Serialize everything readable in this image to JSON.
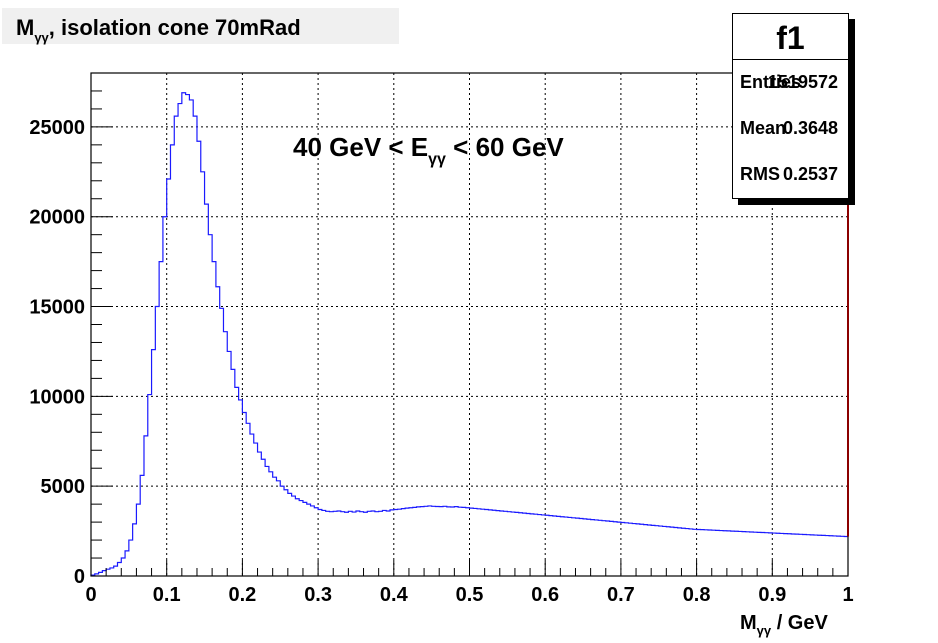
{
  "title": {
    "main": "M",
    "sub": "γγ",
    "rest": ", isolation cone 70mRad"
  },
  "stats": {
    "name": "f1",
    "entries_label": "Entries",
    "entries_value": "1519572",
    "mean_label": "Mean",
    "mean_value": "0.3648",
    "rms_label": "RMS",
    "rms_value": "0.2537"
  },
  "annotation": {
    "pre": "40 GeV < E",
    "sub": "γγ",
    "post": " < 60 GeV"
  },
  "xtitle": {
    "main": "M",
    "sub": "γγ",
    "rest": " / GeV"
  },
  "colors": {
    "histogram": "#1a1aff",
    "right_edge": "#8b0000"
  },
  "chart_data": {
    "type": "histogram",
    "xlim": [
      0,
      1
    ],
    "ylim": [
      0,
      28000
    ],
    "grid": true,
    "x_ticks": [
      "0",
      "0.1",
      "0.2",
      "0.3",
      "0.4",
      "0.5",
      "0.6",
      "0.7",
      "0.8",
      "0.9",
      "1"
    ],
    "y_ticks": [
      "0",
      "5000",
      "10000",
      "15000",
      "20000",
      "25000"
    ],
    "bin_width": 0.005,
    "values": [
      50,
      120,
      200,
      300,
      380,
      450,
      550,
      750,
      1000,
      1400,
      2000,
      2900,
      4000,
      5600,
      7800,
      10100,
      12600,
      15000,
      17500,
      20000,
      22100,
      24000,
      25600,
      26300,
      26900,
      26800,
      26500,
      25600,
      24200,
      22500,
      20700,
      19000,
      17500,
      16100,
      14900,
      13600,
      12500,
      11500,
      10500,
      9800,
      9100,
      8500,
      7900,
      7400,
      6900,
      6500,
      6100,
      5800,
      5500,
      5300,
      5000,
      4800,
      4600,
      4450,
      4300,
      4200,
      4100,
      4000,
      3900,
      3800,
      3700,
      3650,
      3600,
      3580,
      3600,
      3620,
      3580,
      3550,
      3600,
      3560,
      3620,
      3580,
      3550,
      3600,
      3620,
      3580,
      3600,
      3650,
      3620,
      3680,
      3700,
      3720,
      3750,
      3780,
      3800,
      3820,
      3850,
      3860,
      3880,
      3900,
      3880,
      3870,
      3860,
      3880,
      3850,
      3840,
      3860,
      3830,
      3820,
      3800,
      3780,
      3760,
      3740,
      3720,
      3700,
      3680,
      3660,
      3640,
      3620,
      3600,
      3580,
      3560,
      3540,
      3520,
      3500,
      3480,
      3460,
      3440,
      3420,
      3400,
      3380,
      3360,
      3340,
      3320,
      3300,
      3280,
      3260,
      3240,
      3220,
      3200,
      3180,
      3160,
      3140,
      3120,
      3100,
      3080,
      3060,
      3040,
      3020,
      3000,
      2980,
      2960,
      2940,
      2920,
      2900,
      2880,
      2860,
      2840,
      2820,
      2800,
      2780,
      2760,
      2740,
      2720,
      2700,
      2680,
      2660,
      2640,
      2620,
      2600,
      2590,
      2580,
      2570,
      2560,
      2550,
      2540,
      2530,
      2520,
      2510,
      2500,
      2490,
      2480,
      2470,
      2460,
      2450,
      2440,
      2430,
      2420,
      2410,
      2400,
      2390,
      2380,
      2370,
      2360,
      2350,
      2340,
      2330,
      2320,
      2310,
      2300,
      2290,
      2280,
      2270,
      2260,
      2250,
      2240,
      2230,
      2220,
      2210,
      2200
    ]
  }
}
